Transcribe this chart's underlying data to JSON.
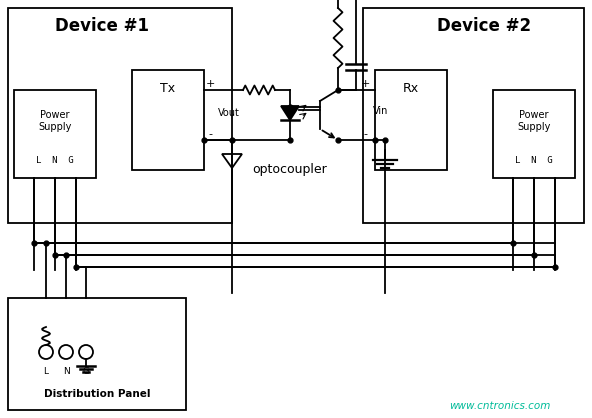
{
  "watermark": "www.cntronics.com",
  "watermark_color": "#00bb99",
  "bg_color": "#ffffff",
  "line_color": "#000000",
  "device1_label": "Device #1",
  "device2_label": "Device #2",
  "tx_label": "Tx",
  "rx_label": "Rx",
  "ps1_text1": "Power",
  "ps1_text2": "Supply",
  "ps1_text3": "L  N  G",
  "ps2_text1": "Power",
  "ps2_text2": "Supply",
  "ps2_text3": "L  N  G",
  "optocoupler_label": "optocoupler",
  "vout_label": "Vout",
  "vin_label": "Vin",
  "dist_panel_label": "Distribution Panel",
  "dist_lng": "L  N  G",
  "figsize": [
    5.92,
    4.18
  ],
  "dpi": 100
}
